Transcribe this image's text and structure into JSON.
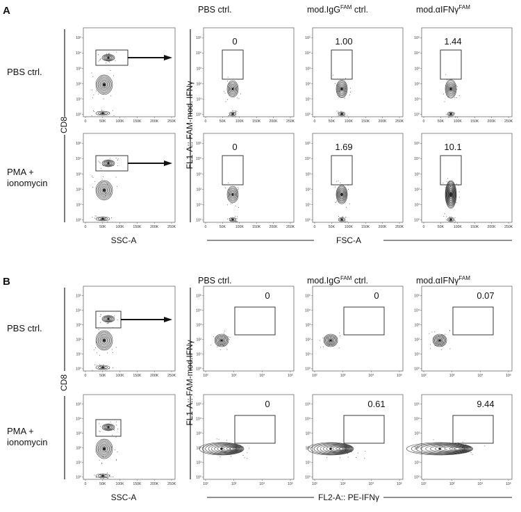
{
  "figure": {
    "sections": [
      {
        "letter": "A",
        "columns": [
          "PBS ctrl.",
          "mod.IgG",
          "mod.αIFNγ"
        ],
        "column_superscripts": [
          "",
          "FAM",
          "FAM"
        ],
        "column_suffixes": [
          "",
          " ctrl.",
          ""
        ],
        "rows": [
          "PBS ctrl.",
          "PMA + ionomycin"
        ],
        "gating_y_label": "CD8",
        "gating_x_label": "SSC-A",
        "gating_x_ticks": [
          "0",
          "50K",
          "100K",
          "150K",
          "200K",
          "250K"
        ],
        "y_ticks": [
          "10⁰",
          "10¹",
          "10²",
          "10³",
          "10⁴",
          "10⁵"
        ],
        "stain_y_label": "FL1-A:: FAM-mod. IFNγ",
        "stain_x_label": "FSC-A",
        "stain_x_ticks": [
          "0",
          "50K",
          "100K",
          "150K",
          "200K",
          "250K"
        ],
        "gate_values": [
          [
            "0",
            "1.00",
            "1.44"
          ],
          [
            "0",
            "1.69",
            "10.1"
          ]
        ]
      },
      {
        "letter": "B",
        "columns": [
          "PBS ctrl.",
          "mod.IgG",
          "mod.αIFNγ"
        ],
        "column_superscripts": [
          "",
          "FAM",
          "FAM"
        ],
        "column_suffixes": [
          "",
          " ctrl.",
          ""
        ],
        "rows": [
          "PBS ctrl.",
          "PMA + ionomycin"
        ],
        "gating_y_label": "CD8",
        "gating_x_label": "SSC-A",
        "gating_x_ticks": [
          "0",
          "50K",
          "100K",
          "150K",
          "200K",
          "250K"
        ],
        "y_ticks": [
          "10⁰",
          "10¹",
          "10²",
          "10³",
          "10⁴",
          "10⁵"
        ],
        "stain_y_label": "FL1-A:: FAM-mod.IFNγ",
        "stain_x_label": "FL2-A:: PE-IFNγ",
        "stain_x_ticks": [
          "10²",
          "10³",
          "10⁴",
          "10⁵"
        ],
        "gate_values": [
          [
            "0",
            "0",
            "0.07"
          ],
          [
            "0",
            "0.61",
            "9.44"
          ]
        ]
      }
    ]
  }
}
